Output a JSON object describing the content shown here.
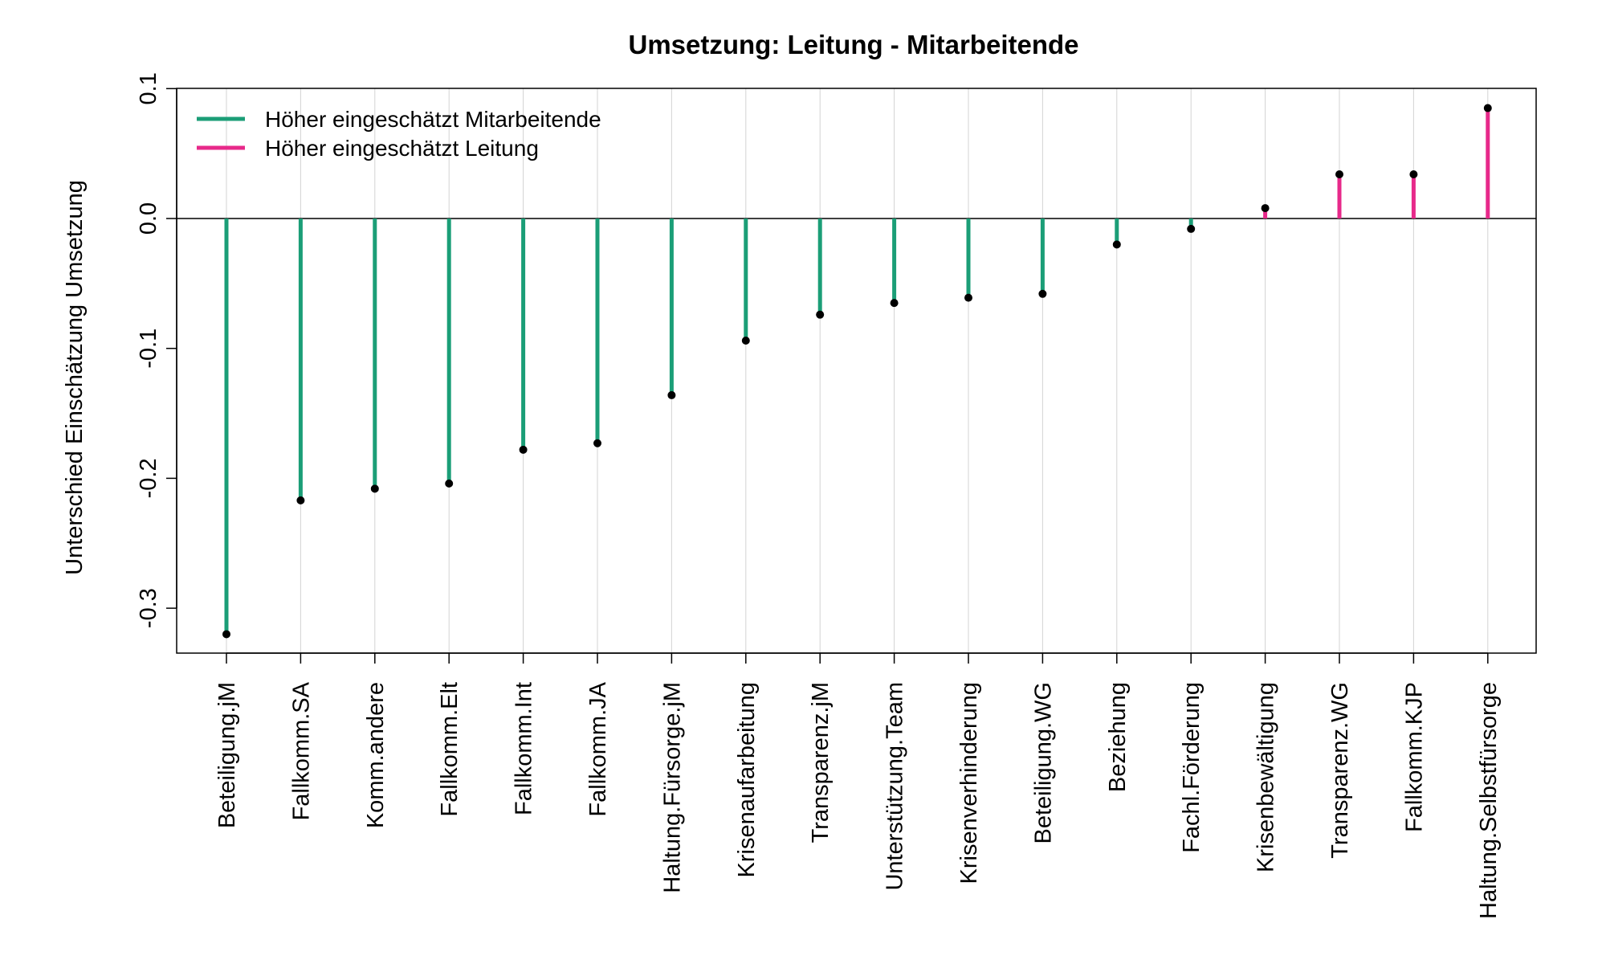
{
  "chart_data": {
    "type": "bar",
    "title": "Umsetzung: Leitung - Mitarbeitende",
    "xlabel": "",
    "ylabel": "Unterschied Einschätzung Umsetzung",
    "ylim": [
      -0.335,
      0.1
    ],
    "yticks": [
      0.1,
      0.0,
      -0.1,
      -0.2,
      -0.3
    ],
    "ytick_labels": [
      "0.1",
      "0.0",
      "-0.1",
      "-0.2",
      "-0.3"
    ],
    "categories": [
      "Beteiligung.jM",
      "Fallkomm.SA",
      "Komm.andere",
      "Fallkomm.Elt",
      "Fallkomm.Int",
      "Fallkomm.JA",
      "Haltung.Fürsorge.jM",
      "Krisenaufarbeitung",
      "Transparenz.jM",
      "Unterstützung.Team",
      "Krisenverhinderung",
      "Beteiligung.WG",
      "Beziehung",
      "Fachl.Förderung",
      "Krisenbewältigung",
      "Transparenz.WG",
      "Fallkomm.KJP",
      "Haltung.Selbstfürsorge"
    ],
    "values": [
      -0.32,
      -0.217,
      -0.208,
      -0.204,
      -0.178,
      -0.173,
      -0.136,
      -0.094,
      -0.074,
      -0.065,
      -0.061,
      -0.058,
      -0.02,
      -0.008,
      0.008,
      0.034,
      0.034,
      0.085
    ],
    "grid": "vertical",
    "legend": {
      "placement": "top-left",
      "entries": [
        {
          "label": "Höher eingeschätzt Mitarbeitende",
          "color": "#1b9e77"
        },
        {
          "label": "Höher eingeschätzt Leitung",
          "color": "#e7298a"
        }
      ]
    },
    "colors": {
      "negative": "#1b9e77",
      "positive": "#e7298a",
      "point": "#000000",
      "grid": "#d3d3d3"
    }
  }
}
